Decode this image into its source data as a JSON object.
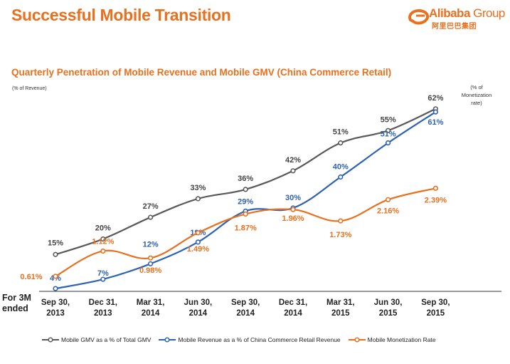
{
  "header": {
    "title": "Successful Mobile Transition",
    "logo_text_bold": "Alibaba",
    "logo_text_light": " Group",
    "logo_text_cn": "阿里巴巴集团"
  },
  "colors": {
    "accent": "#E8701E",
    "gmv": "#595959",
    "revenue": "#2E62B4",
    "monetization": "#E8701E"
  },
  "chart_data": {
    "type": "line",
    "title": "Quarterly Penetration of Mobile Revenue and Mobile GMV (China Commerce Retail)",
    "ylabel_left": "(% of Revenue)",
    "ylabel_right": "(% of Monetization rate)",
    "ylabel_right_lines": [
      "(% of",
      "Monetization",
      "rate)"
    ],
    "period_label": "For 3M ended",
    "period_label_lines": [
      "For 3M",
      "ended"
    ],
    "categories": [
      [
        "Sep 30,",
        "2013"
      ],
      [
        "Dec 31,",
        "2013"
      ],
      [
        "Mar 31,",
        "2014"
      ],
      [
        "Jun 30,",
        "2014"
      ],
      [
        "Sep 30,",
        "2014"
      ],
      [
        "Dec 31,",
        "2014"
      ],
      [
        "Mar 31,",
        "2015"
      ],
      [
        "Jun 30,",
        "2015"
      ],
      [
        "Sep 30,",
        "2015"
      ]
    ],
    "series": [
      {
        "name": "Mobile GMV as a % of Total GMV",
        "key": "gmv",
        "axis": "left",
        "values": [
          15,
          20,
          27,
          33,
          36,
          42,
          51,
          55,
          62
        ],
        "labels": [
          "15%",
          "20%",
          "27%",
          "33%",
          "36%",
          "42%",
          "51%",
          "55%",
          "62%"
        ]
      },
      {
        "name": "Mobile Revenue as a % of China Commerce Retail Revenue",
        "key": "revenue",
        "axis": "left",
        "values": [
          4,
          7,
          12,
          19,
          29,
          30,
          40,
          51,
          61
        ],
        "labels": [
          "4%",
          "7%",
          "12%",
          "19%",
          "29%",
          "30%",
          "40%",
          "51%",
          "61%"
        ]
      },
      {
        "name": "Mobile Monetization Rate",
        "key": "monetization",
        "axis": "right",
        "values": [
          0.61,
          1.12,
          0.98,
          1.49,
          1.87,
          1.96,
          1.73,
          2.16,
          2.39
        ],
        "labels": [
          "0.61%",
          "1.12%",
          "0.98%",
          "1.49%",
          "1.87%",
          "1.96%",
          "1.73%",
          "2.16%",
          "2.39%"
        ]
      }
    ]
  }
}
